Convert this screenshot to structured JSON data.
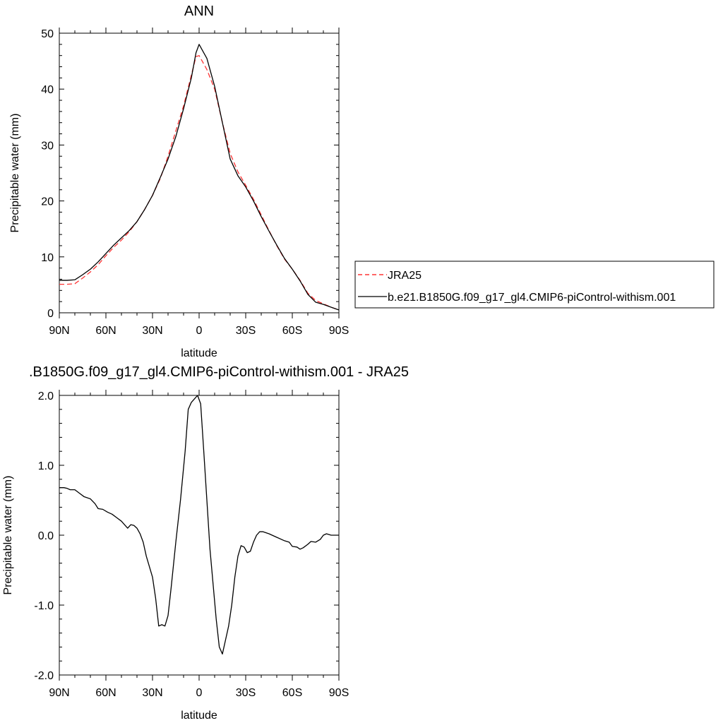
{
  "chart_data": [
    {
      "type": "line",
      "title": "ANN",
      "xlabel": "latitude",
      "ylabel": "Precipitable water (mm)",
      "xlim": [
        90,
        -90
      ],
      "ylim": [
        0,
        50
      ],
      "xticks": [
        {
          "value": 90,
          "label": "90N"
        },
        {
          "value": 60,
          "label": "60N"
        },
        {
          "value": 30,
          "label": "30N"
        },
        {
          "value": 0,
          "label": "0"
        },
        {
          "value": -30,
          "label": "30S"
        },
        {
          "value": -60,
          "label": "60S"
        },
        {
          "value": -90,
          "label": "90S"
        }
      ],
      "yticks": [
        {
          "value": 0,
          "label": "0"
        },
        {
          "value": 10,
          "label": "10"
        },
        {
          "value": 20,
          "label": "20"
        },
        {
          "value": 30,
          "label": "30"
        },
        {
          "value": 40,
          "label": "40"
        },
        {
          "value": 50,
          "label": "50"
        }
      ],
      "grid": false,
      "legend": {
        "placement": "right"
      },
      "series": [
        {
          "name": "JRA25",
          "color": "#ff3333",
          "dash": "dashed",
          "points": [
            [
              90,
              5.1
            ],
            [
              85,
              5.1
            ],
            [
              80,
              5.2
            ],
            [
              75,
              6.2
            ],
            [
              70,
              7.3
            ],
            [
              65,
              8.6
            ],
            [
              60,
              10.2
            ],
            [
              55,
              11.7
            ],
            [
              50,
              13
            ],
            [
              45,
              14.5
            ],
            [
              40,
              16.3
            ],
            [
              35,
              18.5
            ],
            [
              30,
              21
            ],
            [
              25,
              24
            ],
            [
              20,
              28
            ],
            [
              15,
              32.5
            ],
            [
              10,
              37
            ],
            [
              5,
              42.5
            ],
            [
              2,
              45.8
            ],
            [
              0,
              46
            ],
            [
              -2,
              45
            ],
            [
              -5,
              43.5
            ],
            [
              -10,
              40
            ],
            [
              -15,
              34
            ],
            [
              -20,
              28.5
            ],
            [
              -25,
              25.2
            ],
            [
              -30,
              22.8
            ],
            [
              -35,
              20.3
            ],
            [
              -40,
              17.5
            ],
            [
              -45,
              14.7
            ],
            [
              -50,
              12
            ],
            [
              -55,
              9.6
            ],
            [
              -60,
              7.8
            ],
            [
              -65,
              5.8
            ],
            [
              -70,
              3.5
            ],
            [
              -75,
              2.2
            ],
            [
              -80,
              1.6
            ],
            [
              -85,
              1
            ],
            [
              -90,
              0.5
            ]
          ]
        },
        {
          "name": "b.e21.B1850G.f09_g17_gl4.CMIP6-piControl-withism.001",
          "color": "#000000",
          "dash": "solid",
          "points": [
            [
              90,
              5.8
            ],
            [
              85,
              5.8
            ],
            [
              80,
              5.9
            ],
            [
              75,
              6.8
            ],
            [
              70,
              7.8
            ],
            [
              65,
              9.1
            ],
            [
              60,
              10.6
            ],
            [
              55,
              12.1
            ],
            [
              50,
              13.4
            ],
            [
              45,
              14.7
            ],
            [
              40,
              16.3
            ],
            [
              35,
              18.5
            ],
            [
              30,
              21
            ],
            [
              25,
              24.2
            ],
            [
              20,
              27.5
            ],
            [
              15,
              31.5
            ],
            [
              10,
              36.5
            ],
            [
              5,
              42
            ],
            [
              2,
              46.5
            ],
            [
              0,
              48
            ],
            [
              -2,
              47
            ],
            [
              -5,
              45.5
            ],
            [
              -8,
              42.5
            ],
            [
              -10,
              40.5
            ],
            [
              -15,
              34
            ],
            [
              -20,
              27.5
            ],
            [
              -25,
              24.5
            ],
            [
              -30,
              22.5
            ],
            [
              -35,
              20
            ],
            [
              -40,
              17.2
            ],
            [
              -45,
              14.6
            ],
            [
              -50,
              12.1
            ],
            [
              -55,
              9.7
            ],
            [
              -60,
              7.8
            ],
            [
              -65,
              5.7
            ],
            [
              -70,
              3.3
            ],
            [
              -75,
              1.9
            ],
            [
              -80,
              1.5
            ],
            [
              -85,
              1
            ],
            [
              -90,
              0.5
            ]
          ]
        }
      ]
    },
    {
      "type": "line",
      "title": ".B1850G.f09_g17_gl4.CMIP6-piControl-withism.001 - JRA25",
      "xlabel": "latitude",
      "ylabel": "Precipitable water (mm)",
      "xlim": [
        90,
        -90
      ],
      "ylim": [
        -2,
        2
      ],
      "xticks": [
        {
          "value": 90,
          "label": "90N"
        },
        {
          "value": 60,
          "label": "60N"
        },
        {
          "value": 30,
          "label": "30N"
        },
        {
          "value": 0,
          "label": "0"
        },
        {
          "value": -30,
          "label": "30S"
        },
        {
          "value": -60,
          "label": "60S"
        },
        {
          "value": -90,
          "label": "90S"
        }
      ],
      "yticks": [
        {
          "value": -2,
          "label": "-2.0"
        },
        {
          "value": -1,
          "label": "-1.0"
        },
        {
          "value": 0,
          "label": "0.0"
        },
        {
          "value": 1,
          "label": "1.0"
        },
        {
          "value": 2,
          "label": "2.0"
        }
      ],
      "grid": false,
      "series": [
        {
          "color": "#000000",
          "dash": "solid",
          "points": [
            [
              90,
              0.68
            ],
            [
              87,
              0.68
            ],
            [
              85,
              0.67
            ],
            [
              83,
              0.65
            ],
            [
              80,
              0.65
            ],
            [
              77,
              0.6
            ],
            [
              74,
              0.55
            ],
            [
              70,
              0.52
            ],
            [
              67,
              0.45
            ],
            [
              65,
              0.38
            ],
            [
              62,
              0.37
            ],
            [
              59,
              0.33
            ],
            [
              56,
              0.3
            ],
            [
              53,
              0.25
            ],
            [
              50,
              0.2
            ],
            [
              48,
              0.15
            ],
            [
              46,
              0.1
            ],
            [
              44,
              0.15
            ],
            [
              42,
              0.14
            ],
            [
              40,
              0.1
            ],
            [
              38,
              0.02
            ],
            [
              36,
              -0.1
            ],
            [
              34,
              -0.3
            ],
            [
              30,
              -0.6
            ],
            [
              28,
              -0.9
            ],
            [
              26,
              -1.3
            ],
            [
              24,
              -1.28
            ],
            [
              22,
              -1.3
            ],
            [
              20,
              -1.15
            ],
            [
              18,
              -0.75
            ],
            [
              15,
              -0.1
            ],
            [
              12,
              0.5
            ],
            [
              9,
              1.2
            ],
            [
              7,
              1.8
            ],
            [
              5,
              1.9
            ],
            [
              3,
              1.95
            ],
            [
              1,
              2
            ],
            [
              -1,
              1.88
            ],
            [
              -3,
              1.2
            ],
            [
              -5,
              0.5
            ],
            [
              -7,
              -0.2
            ],
            [
              -9,
              -0.7
            ],
            [
              -11,
              -1.2
            ],
            [
              -13,
              -1.6
            ],
            [
              -15,
              -1.7
            ],
            [
              -17,
              -1.5
            ],
            [
              -19,
              -1.3
            ],
            [
              -21,
              -1
            ],
            [
              -23,
              -0.6
            ],
            [
              -25,
              -0.3
            ],
            [
              -27,
              -0.15
            ],
            [
              -29,
              -0.17
            ],
            [
              -31,
              -0.25
            ],
            [
              -33,
              -0.23
            ],
            [
              -35,
              -0.1
            ],
            [
              -37,
              0
            ],
            [
              -39,
              0.05
            ],
            [
              -41,
              0.05
            ],
            [
              -45,
              0.02
            ],
            [
              -50,
              -0.03
            ],
            [
              -55,
              -0.08
            ],
            [
              -58,
              -0.1
            ],
            [
              -60,
              -0.16
            ],
            [
              -63,
              -0.17
            ],
            [
              -65,
              -0.2
            ],
            [
              -67,
              -0.18
            ],
            [
              -70,
              -0.13
            ],
            [
              -72,
              -0.09
            ],
            [
              -75,
              -0.1
            ],
            [
              -78,
              -0.06
            ],
            [
              -80,
              0
            ],
            [
              -82,
              0.02
            ],
            [
              -85,
              0
            ],
            [
              -88,
              0
            ],
            [
              -90,
              0
            ]
          ]
        }
      ]
    }
  ]
}
